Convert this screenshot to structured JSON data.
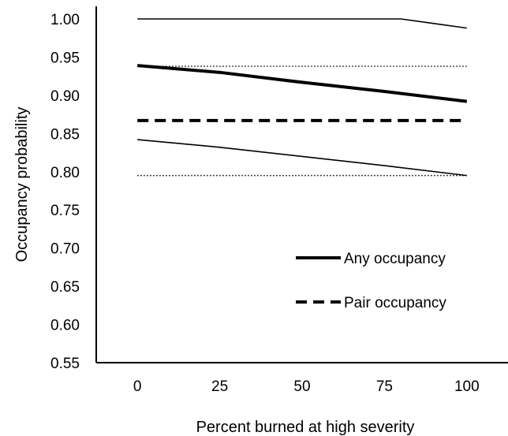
{
  "chart_data": {
    "type": "line",
    "title": "",
    "xlabel": "Percent burned at high severity",
    "ylabel": "Occupancy probability",
    "x": [
      0,
      25,
      50,
      75,
      100
    ],
    "xticks": [
      0,
      25,
      50,
      75,
      100
    ],
    "xtick_labels": [
      "0",
      "25",
      "50",
      "75",
      "100"
    ],
    "xlim": [
      -12.5,
      112.5
    ],
    "ylim": [
      0.55,
      1.0
    ],
    "yticks": [
      0.55,
      0.6,
      0.65,
      0.7,
      0.75,
      0.8,
      0.85,
      0.9,
      0.95,
      1.0
    ],
    "ytick_labels": [
      "0.55",
      "0.60",
      "0.65",
      "0.70",
      "0.75",
      "0.80",
      "0.85",
      "0.90",
      "0.95",
      "1.00"
    ],
    "grid": false,
    "legend_position": "lower-right",
    "series": [
      {
        "name": "Any occupancy",
        "role": "estimate",
        "style": "solid-thick",
        "values": [
          0.939,
          0.93,
          0.917,
          0.905,
          0.892
        ]
      },
      {
        "role": "upper-bound",
        "group": "Any occupancy",
        "style": "solid-thin",
        "x": [
          0,
          25,
          50,
          75,
          80,
          90,
          100
        ],
        "values": [
          1.0,
          1.0,
          1.0,
          1.0,
          1.0,
          0.994,
          0.988
        ]
      },
      {
        "role": "lower-bound",
        "group": "Any occupancy",
        "style": "solid-thin",
        "values": [
          0.842,
          0.832,
          0.82,
          0.808,
          0.795
        ]
      },
      {
        "name": "Pair occupancy",
        "role": "estimate",
        "style": "dashed-thick",
        "values": [
          0.867,
          0.867,
          0.867,
          0.867,
          0.867
        ]
      },
      {
        "role": "upper-bound",
        "group": "Pair occupancy",
        "style": "dotted-thin",
        "values": [
          0.938,
          0.938,
          0.938,
          0.938,
          0.938
        ]
      },
      {
        "role": "lower-bound",
        "group": "Pair occupancy",
        "style": "dotted-thin",
        "values": [
          0.795,
          0.795,
          0.795,
          0.795,
          0.795
        ]
      }
    ],
    "legend": [
      {
        "label": "Any occupancy",
        "style": "solid-thick"
      },
      {
        "label": "Pair occupancy",
        "style": "dashed-thick"
      }
    ]
  }
}
